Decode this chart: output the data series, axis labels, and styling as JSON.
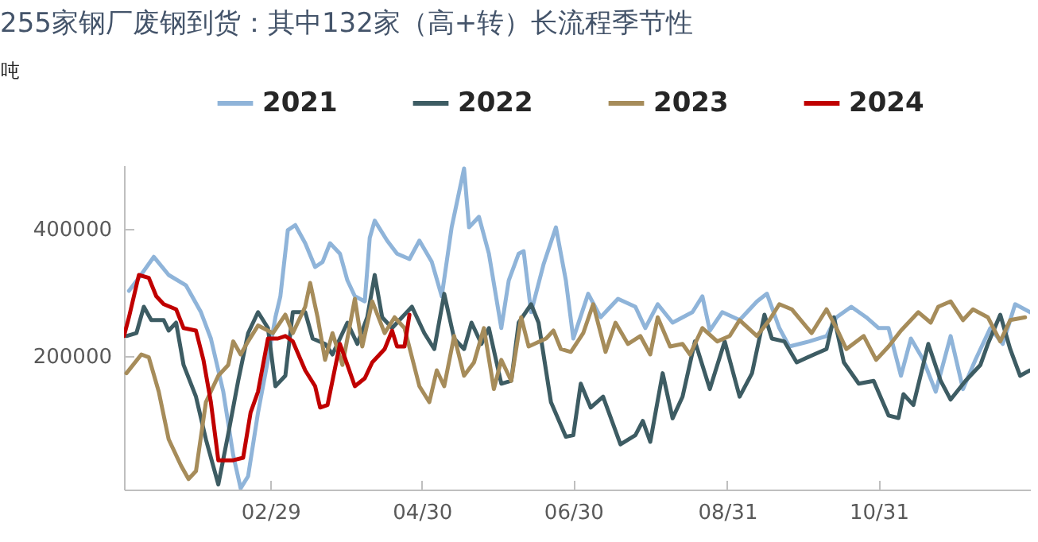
{
  "chart_data": {
    "type": "line",
    "title": "255家钢厂废钢到货：其中132家（高+转）长流程季节性",
    "ylabel": "吨",
    "xlim": [
      "--01-01",
      "--12-31"
    ],
    "xticks": [
      {
        "value": "--02-29",
        "label": "02/29"
      },
      {
        "value": "--04-30",
        "label": "04/30"
      },
      {
        "value": "--06-30",
        "label": "06/30"
      },
      {
        "value": "--08-31",
        "label": "08/31"
      },
      {
        "value": "--10-31",
        "label": "10/31"
      }
    ],
    "ylim": [
      -10000,
      500000
    ],
    "yticks": [
      200000,
      400000
    ],
    "grid": false,
    "legend": "top",
    "marker": "none",
    "line_style": "solid",
    "series": [
      {
        "name": "2021",
        "color": "#8fb4d9",
        "x": [
          "--01-03",
          "--01-07",
          "--01-13",
          "--01-19",
          "--01-26",
          "--02-01",
          "--02-05",
          "--02-10",
          "--02-14",
          "--02-17",
          "--02-20",
          "--02-24",
          "--02-28",
          "--03-02",
          "--03-04",
          "--03-07",
          "--03-10",
          "--03-14",
          "--03-18",
          "--03-21",
          "--03-24",
          "--03-28",
          "--03-31",
          "--04-03",
          "--04-07",
          "--04-09",
          "--04-11",
          "--04-16",
          "--04-20",
          "--04-25",
          "--04-29",
          "--05-04",
          "--05-08",
          "--05-12",
          "--05-17",
          "--05-19",
          "--05-23",
          "--05-27",
          "--06-01",
          "--06-04",
          "--06-08",
          "--06-10",
          "--06-13",
          "--06-18",
          "--06-23",
          "--06-27",
          "--06-30",
          "--07-06",
          "--07-11",
          "--07-18",
          "--07-25",
          "--07-29",
          "--08-03",
          "--08-09",
          "--08-17",
          "--08-21",
          "--08-24",
          "--08-29",
          "--09-05",
          "--09-12",
          "--09-16",
          "--09-21",
          "--09-25",
          "--10-03",
          "--10-10",
          "--10-14",
          "--10-20",
          "--10-26",
          "--10-31",
          "--11-04",
          "--11-09",
          "--11-13",
          "--11-18",
          "--11-23",
          "--11-29",
          "--12-04",
          "--12-09",
          "--12-15",
          "--12-20",
          "--12-25",
          "--12-31"
        ],
        "values": [
          302500,
          323000,
          356000,
          327500,
          311000,
          269000,
          227500,
          144000,
          44000,
          -8000,
          11000,
          111000,
          194000,
          261000,
          294000,
          398000,
          406000,
          377500,
          340000,
          348000,
          377500,
          361000,
          319000,
          294000,
          286000,
          386000,
          413000,
          381500,
          361000,
          352500,
          381500,
          348000,
          294000,
          402500,
          495000,
          402500,
          419000,
          361000,
          244000,
          319000,
          361000,
          365000,
          269000,
          344000,
          402500,
          319000,
          227500,
          298000,
          261000,
          290000,
          277500,
          244000,
          281500,
          252500,
          269000,
          294000,
          240000,
          269000,
          256500,
          286000,
          298000,
          244000,
          215000,
          223000,
          231500,
          261000,
          277500,
          261000,
          244000,
          244000,
          169000,
          227500,
          194000,
          144000,
          231500,
          148000,
          194000,
          244000,
          219000,
          281500,
          269000
        ]
      },
      {
        "name": "2022",
        "color": "#3d5c63",
        "x": [
          "--01-02",
          "--01-06",
          "--01-09",
          "--01-12",
          "--01-17",
          "--01-19",
          "--01-22",
          "--01-25",
          "--01-30",
          "--02-03",
          "--02-08",
          "--02-12",
          "--02-16",
          "--02-20",
          "--02-24",
          "--02-28",
          "--03-02",
          "--03-06",
          "--03-09",
          "--03-14",
          "--03-17",
          "--03-22",
          "--03-25",
          "--03-28",
          "--03-31",
          "--04-04",
          "--04-08",
          "--04-11",
          "--04-14",
          "--04-18",
          "--04-22",
          "--04-26",
          "--05-01",
          "--05-05",
          "--05-09",
          "--05-13",
          "--05-17",
          "--05-20",
          "--05-24",
          "--05-27",
          "--06-01",
          "--06-05",
          "--06-08",
          "--06-13",
          "--06-16",
          "--06-21",
          "--06-27",
          "--06-30",
          "--07-03",
          "--07-07",
          "--07-12",
          "--07-19",
          "--07-25",
          "--07-28",
          "--07-31",
          "--08-05",
          "--08-09",
          "--08-13",
          "--08-18",
          "--08-24",
          "--08-30",
          "--09-05",
          "--09-10",
          "--09-15",
          "--09-18",
          "--09-23",
          "--09-28",
          "--10-05",
          "--10-10",
          "--10-13",
          "--10-17",
          "--10-23",
          "--10-29",
          "--11-04",
          "--11-08",
          "--11-10",
          "--11-14",
          "--11-20",
          "--11-25",
          "--11-29",
          "--12-05",
          "--12-11",
          "--12-14",
          "--12-19",
          "--12-23",
          "--12-27",
          "--12-31"
        ],
        "values": [
          231500,
          236000,
          277500,
          256500,
          256500,
          240000,
          252500,
          186000,
          136000,
          69000,
          -2000,
          77500,
          161000,
          236000,
          269000,
          244000,
          152500,
          169000,
          269000,
          269000,
          227500,
          219000,
          202500,
          227500,
          252500,
          219000,
          261000,
          327500,
          261000,
          244000,
          261000,
          277500,
          236000,
          211000,
          298000,
          227500,
          211000,
          252500,
          219000,
          244000,
          156500,
          161000,
          252500,
          281500,
          252500,
          127500,
          73000,
          75500,
          156500,
          119000,
          136000,
          61000,
          75500,
          98000,
          65000,
          173000,
          102000,
          136000,
          223000,
          148000,
          223000,
          136000,
          173000,
          265000,
          227500,
          223000,
          190000,
          202500,
          211000,
          261000,
          190000,
          156500,
          161000,
          106500,
          102500,
          140000,
          123000,
          219000,
          161000,
          131500,
          161000,
          186000,
          219000,
          265000,
          211000,
          169000,
          177500
        ]
      },
      {
        "name": "2023",
        "color": "#a68c5a",
        "x": [
          "--01-02",
          "--01-08",
          "--01-11",
          "--01-15",
          "--01-19",
          "--01-24",
          "--01-27",
          "--01-30",
          "--02-03",
          "--02-08",
          "--02-12",
          "--02-14",
          "--02-17",
          "--02-20",
          "--02-24",
          "--03-01",
          "--03-06",
          "--03-09",
          "--03-14",
          "--03-16",
          "--03-19",
          "--03-22",
          "--03-25",
          "--03-29",
          "--04-03",
          "--04-06",
          "--04-10",
          "--04-15",
          "--04-19",
          "--04-23",
          "--04-29",
          "--05-03",
          "--05-06",
          "--05-09",
          "--05-13",
          "--05-17",
          "--05-21",
          "--05-25",
          "--05-29",
          "--06-01",
          "--06-05",
          "--06-09",
          "--06-12",
          "--06-19",
          "--06-22",
          "--06-25",
          "--06-29",
          "--07-04",
          "--07-08",
          "--07-13",
          "--07-17",
          "--07-22",
          "--07-27",
          "--07-31",
          "--08-03",
          "--08-08",
          "--08-13",
          "--08-16",
          "--08-21",
          "--08-27",
          "--09-01",
          "--09-05",
          "--09-12",
          "--09-17",
          "--09-21",
          "--09-26",
          "--10-04",
          "--10-10",
          "--10-14",
          "--10-18",
          "--10-25",
          "--10-30",
          "--11-04",
          "--11-09",
          "--11-16",
          "--11-21",
          "--11-24",
          "--11-29",
          "--12-04",
          "--12-08",
          "--12-14",
          "--12-19",
          "--12-23",
          "--12-29"
        ],
        "values": [
          173000,
          202500,
          198000,
          144000,
          69000,
          27500,
          6500,
          19000,
          127500,
          169000,
          186000,
          223000,
          202500,
          223000,
          248000,
          236000,
          265000,
          236000,
          277500,
          315000,
          261000,
          194000,
          236000,
          186000,
          290000,
          215000,
          286000,
          236000,
          261000,
          244000,
          152500,
          127500,
          177500,
          152500,
          231500,
          169000,
          190000,
          244000,
          148000,
          194000,
          161000,
          261000,
          215000,
          227500,
          240000,
          211000,
          206500,
          236000,
          281500,
          206500,
          252500,
          219000,
          231500,
          202500,
          261000,
          215000,
          219000,
          202500,
          244000,
          223000,
          231500,
          256500,
          231500,
          256500,
          281500,
          273500,
          236000,
          273500,
          244000,
          211000,
          231500,
          194000,
          215000,
          240000,
          269000,
          252500,
          277500,
          286000,
          256500,
          273500,
          261000,
          223000,
          256500,
          261000
        ]
      },
      {
        "name": "2024",
        "color": "#c00000",
        "x": [
          "--01-01",
          "--01-03",
          "--01-07",
          "--01-11",
          "--01-14",
          "--01-17",
          "--01-22",
          "--01-25",
          "--01-30",
          "--02-02",
          "--02-05",
          "--02-08",
          "--02-14",
          "--02-18",
          "--02-21",
          "--02-24",
          "--02-28",
          "--03-03",
          "--03-06",
          "--03-09",
          "--03-14",
          "--03-18",
          "--03-20",
          "--03-23",
          "--03-28",
          "--03-31",
          "--04-03",
          "--04-07",
          "--04-10",
          "--04-15",
          "--04-18",
          "--04-20",
          "--04-23",
          "--04-25"
        ],
        "values": [
          231500,
          261000,
          327500,
          323000,
          294000,
          281500,
          273500,
          244000,
          240000,
          194000,
          127500,
          36000,
          36000,
          40000,
          111000,
          144000,
          227500,
          227500,
          231500,
          223000,
          177500,
          152500,
          119000,
          123000,
          219000,
          186000,
          152500,
          165000,
          190000,
          211000,
          240000,
          215000,
          215000,
          265000
        ]
      }
    ]
  }
}
